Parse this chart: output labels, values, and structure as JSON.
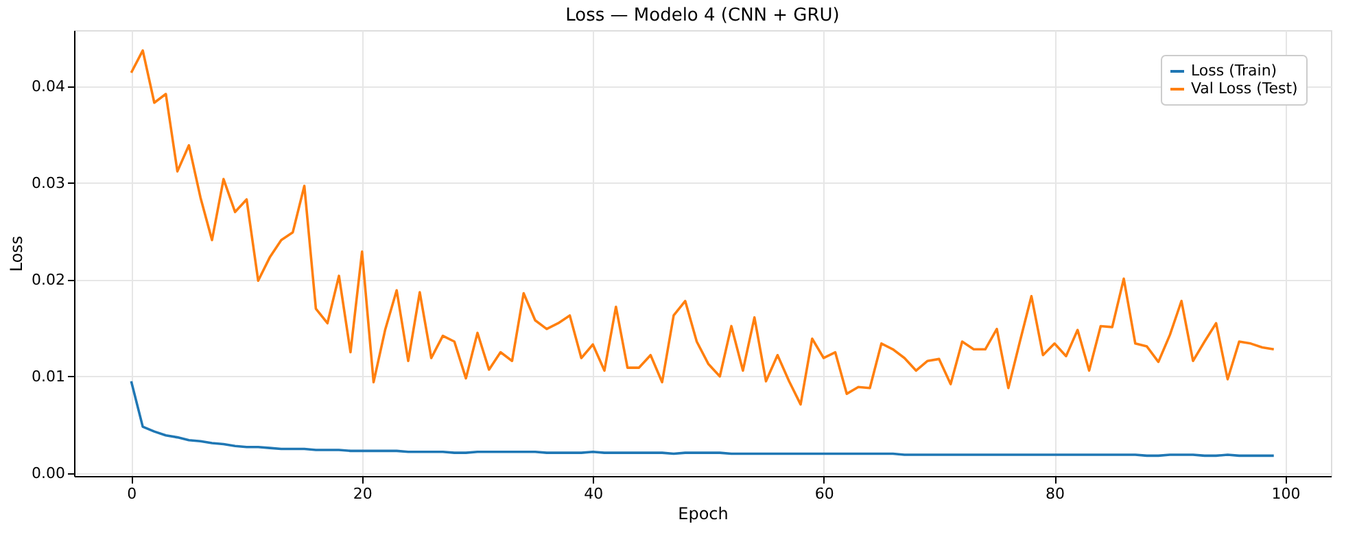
{
  "chart_data": {
    "type": "line",
    "title": "Loss — Modelo 4 (CNN + GRU)",
    "xlabel": "Epoch",
    "ylabel": "Loss",
    "x": [
      0,
      1,
      2,
      3,
      4,
      5,
      6,
      7,
      8,
      9,
      10,
      11,
      12,
      13,
      14,
      15,
      16,
      17,
      18,
      19,
      20,
      21,
      22,
      23,
      24,
      25,
      26,
      27,
      28,
      29,
      30,
      31,
      32,
      33,
      34,
      35,
      36,
      37,
      38,
      39,
      40,
      41,
      42,
      43,
      44,
      45,
      46,
      47,
      48,
      49,
      50,
      51,
      52,
      53,
      54,
      55,
      56,
      57,
      58,
      59,
      60,
      61,
      62,
      63,
      64,
      65,
      66,
      67,
      68,
      69,
      70,
      71,
      72,
      73,
      74,
      75,
      76,
      77,
      78,
      79,
      80,
      81,
      82,
      83,
      84,
      85,
      86,
      87,
      88,
      89,
      90,
      91,
      92,
      93,
      94,
      95,
      96,
      97,
      98,
      99
    ],
    "series": [
      {
        "name": "Loss (Train)",
        "color": "#1f77b4",
        "values": [
          0.0095,
          0.0048,
          0.0043,
          0.0039,
          0.0037,
          0.0034,
          0.0033,
          0.0031,
          0.003,
          0.0028,
          0.0027,
          0.0027,
          0.0026,
          0.0025,
          0.0025,
          0.0025,
          0.0024,
          0.0024,
          0.0024,
          0.0023,
          0.0023,
          0.0023,
          0.0023,
          0.0023,
          0.0022,
          0.0022,
          0.0022,
          0.0022,
          0.0021,
          0.0021,
          0.0022,
          0.0022,
          0.0022,
          0.0022,
          0.0022,
          0.0022,
          0.0021,
          0.0021,
          0.0021,
          0.0021,
          0.0022,
          0.0021,
          0.0021,
          0.0021,
          0.0021,
          0.0021,
          0.0021,
          0.002,
          0.0021,
          0.0021,
          0.0021,
          0.0021,
          0.002,
          0.002,
          0.002,
          0.002,
          0.002,
          0.002,
          0.002,
          0.002,
          0.002,
          0.002,
          0.002,
          0.002,
          0.002,
          0.002,
          0.002,
          0.0019,
          0.0019,
          0.0019,
          0.0019,
          0.0019,
          0.0019,
          0.0019,
          0.0019,
          0.0019,
          0.0019,
          0.0019,
          0.0019,
          0.0019,
          0.0019,
          0.0019,
          0.0019,
          0.0019,
          0.0019,
          0.0019,
          0.0019,
          0.0019,
          0.0018,
          0.0018,
          0.0019,
          0.0019,
          0.0019,
          0.0018,
          0.0018,
          0.0019,
          0.0018,
          0.0018,
          0.0018,
          0.0018
        ]
      },
      {
        "name": "Val Loss (Test)",
        "color": "#ff7f0e",
        "values": [
          0.0414,
          0.0437,
          0.0383,
          0.0392,
          0.0312,
          0.0339,
          0.0285,
          0.0241,
          0.0304,
          0.027,
          0.0283,
          0.0199,
          0.0223,
          0.0241,
          0.0249,
          0.0297,
          0.017,
          0.0155,
          0.0204,
          0.0125,
          0.0229,
          0.0094,
          0.0148,
          0.0189,
          0.0116,
          0.0187,
          0.0119,
          0.0142,
          0.0136,
          0.0098,
          0.0145,
          0.0107,
          0.0125,
          0.0116,
          0.0186,
          0.0158,
          0.0149,
          0.0155,
          0.0163,
          0.0119,
          0.0133,
          0.0106,
          0.0172,
          0.0109,
          0.0109,
          0.0122,
          0.0094,
          0.0163,
          0.0178,
          0.0136,
          0.0113,
          0.01,
          0.0152,
          0.0106,
          0.0161,
          0.0095,
          0.0122,
          0.0095,
          0.0071,
          0.0139,
          0.0119,
          0.0125,
          0.0082,
          0.0089,
          0.0088,
          0.0134,
          0.0128,
          0.0119,
          0.0106,
          0.0116,
          0.0118,
          0.0092,
          0.0136,
          0.0128,
          0.0128,
          0.0149,
          0.0088,
          0.0136,
          0.0183,
          0.0122,
          0.0134,
          0.0121,
          0.0148,
          0.0106,
          0.0152,
          0.0151,
          0.0201,
          0.0134,
          0.0131,
          0.0115,
          0.0143,
          0.0178,
          0.0116,
          0.0136,
          0.0155,
          0.0097,
          0.0136,
          0.0134,
          0.013,
          0.0128
        ]
      }
    ],
    "xlim": [
      -4.95,
      103.95
    ],
    "xticks": [
      0,
      20,
      40,
      60,
      80,
      100
    ],
    "ylim": [
      -0.0003,
      0.0458
    ],
    "yticks": [
      {
        "value": 0,
        "label": "0.00"
      },
      {
        "value": 0.01,
        "label": "0.01"
      },
      {
        "value": 0.02,
        "label": "0.02"
      },
      {
        "value": 0.03,
        "label": "0.03"
      },
      {
        "value": 0.04,
        "label": "0.04"
      }
    ],
    "grid": true,
    "legend": "top right",
    "line_style": "solid",
    "marker": "none"
  }
}
